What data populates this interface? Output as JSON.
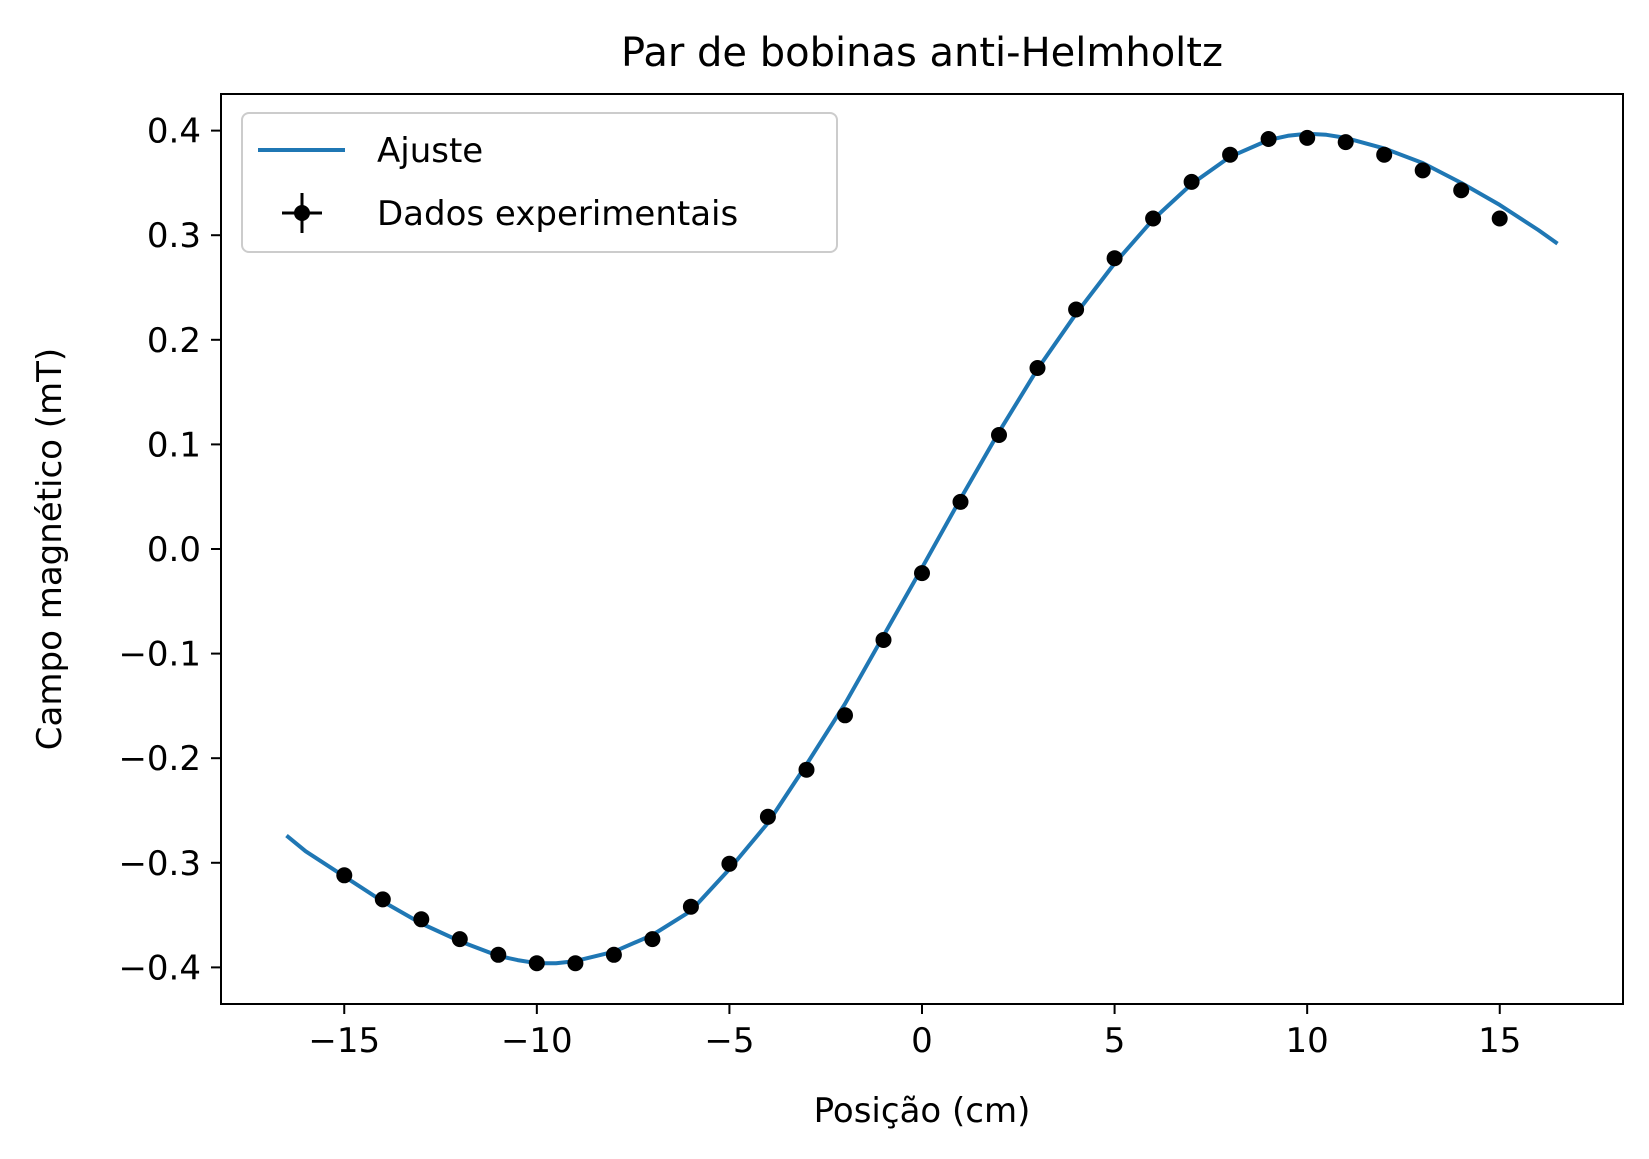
{
  "chart_data": {
    "type": "scatter",
    "title": "Par de bobinas anti-Helmholtz",
    "xlabel": "Posição (cm)",
    "ylabel": "Campo magnético (mT)",
    "xlim": [
      -18.2,
      18.2
    ],
    "ylim": [
      -0.435,
      0.435
    ],
    "xticks": [
      -15,
      -10,
      -5,
      0,
      5,
      10,
      15
    ],
    "xtick_labels": [
      "−15",
      "−10",
      "−5",
      "0",
      "5",
      "10",
      "15"
    ],
    "yticks": [
      -0.4,
      -0.3,
      -0.2,
      -0.1,
      0.0,
      0.1,
      0.2,
      0.3,
      0.4
    ],
    "ytick_labels": [
      "−0.4",
      "−0.3",
      "−0.2",
      "−0.1",
      "0.0",
      "0.1",
      "0.2",
      "0.3",
      "0.4"
    ],
    "grid": false,
    "legend_position": "top-left",
    "series": [
      {
        "name": "Ajuste",
        "type": "line",
        "color": "#1f77b4",
        "x": [
          -16.5,
          -16,
          -15,
          -14,
          -13,
          -12,
          -11,
          -10.5,
          -10,
          -9.5,
          -9,
          -8,
          -7,
          -6,
          -5,
          -4,
          -3,
          -2,
          -1,
          0,
          1,
          2,
          3,
          4,
          5,
          6,
          7,
          8,
          9,
          9.5,
          10,
          10.5,
          11,
          12,
          13,
          14,
          15,
          16,
          16.5
        ],
        "y": [
          -0.274,
          -0.289,
          -0.313,
          -0.337,
          -0.358,
          -0.375,
          -0.389,
          -0.393,
          -0.396,
          -0.396,
          -0.394,
          -0.385,
          -0.369,
          -0.346,
          -0.306,
          -0.262,
          -0.206,
          -0.148,
          -0.083,
          -0.018,
          0.048,
          0.112,
          0.172,
          0.225,
          0.273,
          0.315,
          0.349,
          0.375,
          0.391,
          0.395,
          0.397,
          0.396,
          0.393,
          0.383,
          0.369,
          0.35,
          0.329,
          0.305,
          0.292
        ]
      },
      {
        "name": "Dados experimentais",
        "type": "scatter",
        "color": "#000000",
        "x": [
          -15,
          -14,
          -13,
          -12,
          -11,
          -10,
          -9,
          -8,
          -7,
          -6,
          -5,
          -4,
          -3,
          -2,
          -1,
          0,
          1,
          2,
          3,
          4,
          5,
          6,
          7,
          8,
          9,
          10,
          11,
          12,
          13,
          14,
          15
        ],
        "y": [
          -0.312,
          -0.335,
          -0.354,
          -0.373,
          -0.388,
          -0.396,
          -0.396,
          -0.388,
          -0.373,
          -0.342,
          -0.301,
          -0.256,
          -0.211,
          -0.159,
          -0.087,
          -0.023,
          0.045,
          0.109,
          0.173,
          0.229,
          0.278,
          0.316,
          0.351,
          0.377,
          0.392,
          0.393,
          0.389,
          0.377,
          0.362,
          0.343,
          0.316
        ]
      }
    ]
  }
}
